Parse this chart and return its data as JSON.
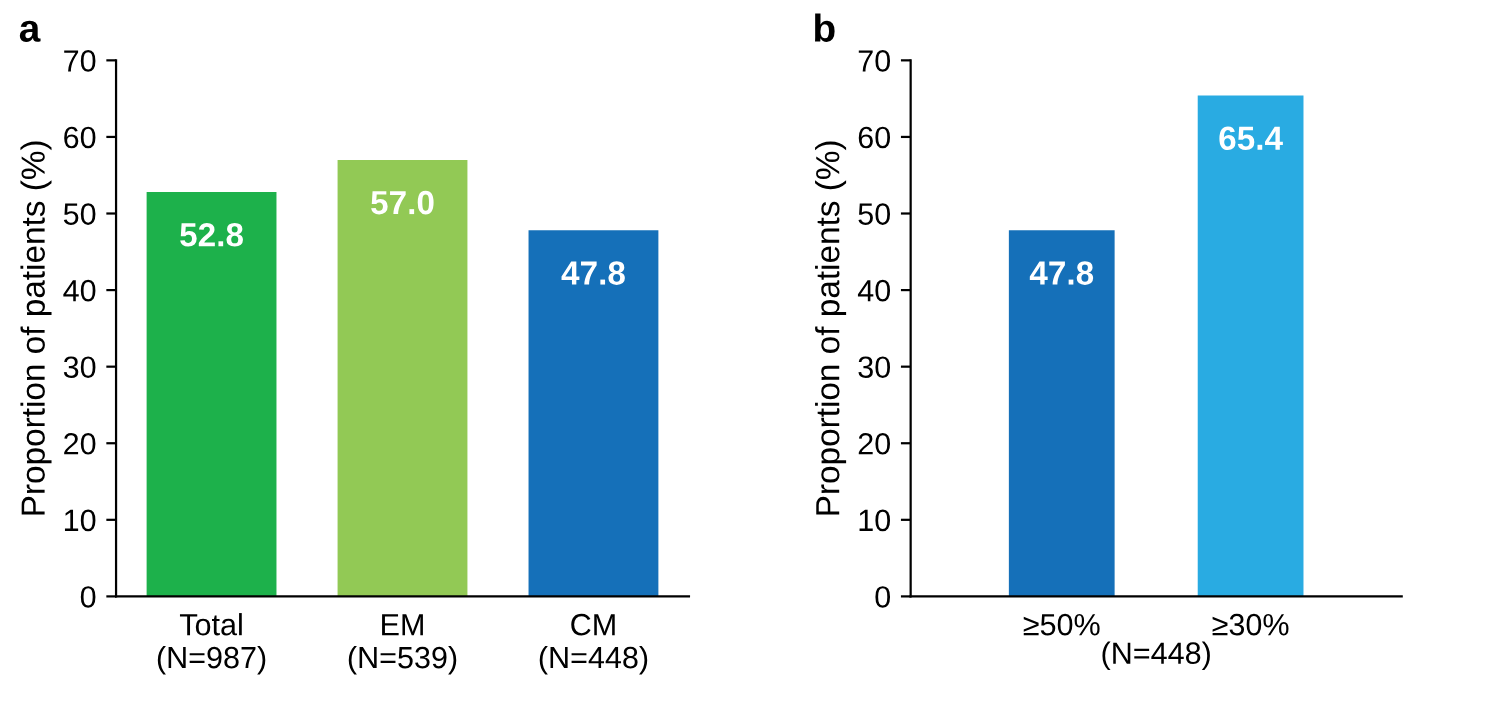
{
  "chart_data": [
    {
      "type": "bar",
      "title": "a",
      "ylabel": "Proportion of patients (%)",
      "categories": [
        "Total\n(N=987)",
        "EM\n(N=539)",
        "CM\n(N=448)"
      ],
      "values": [
        52.8,
        57.0,
        47.8
      ],
      "value_labels": [
        "52.8",
        "57.0",
        "47.8"
      ],
      "colors": [
        "#1db14b",
        "#92c955",
        "#1570b9"
      ],
      "ylim": [
        0,
        70
      ],
      "yticks": [
        0,
        10,
        20,
        30,
        40,
        50,
        60,
        70
      ],
      "grid": false,
      "legend": false
    },
    {
      "type": "bar",
      "title": "b",
      "ylabel": "Proportion of patients (%)",
      "xlabel": "(N=448)",
      "categories": [
        "≥50%",
        "≥30%"
      ],
      "values": [
        47.8,
        65.4
      ],
      "value_labels": [
        "47.8",
        "65.4"
      ],
      "colors": [
        "#1570b9",
        "#29abe2"
      ],
      "ylim": [
        0,
        70
      ],
      "yticks": [
        0,
        10,
        20,
        30,
        40,
        50,
        60,
        70
      ],
      "grid": false,
      "legend": false
    }
  ]
}
